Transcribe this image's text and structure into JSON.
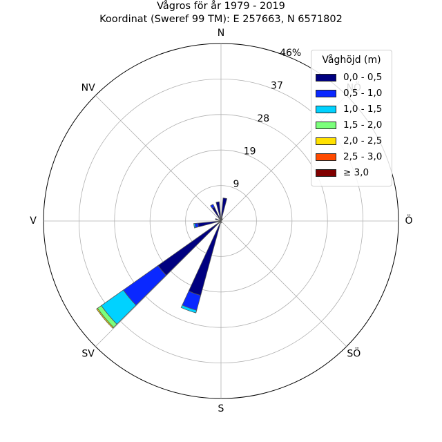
{
  "title": {
    "line1": "Vågros för år 1979 - 2019",
    "line2": "Koordinat (Sweref 99 TM): E 257663, N 6571802"
  },
  "chart_data": {
    "type": "windrose",
    "directions": [
      "N",
      "NV",
      "V",
      "SV",
      "S",
      "SÖ",
      "Ö",
      "NÖ"
    ],
    "direction_angles_deg": [
      0,
      315,
      270,
      225,
      180,
      135,
      90,
      45
    ],
    "radial_ticks": [
      "9",
      "19",
      "28",
      "37",
      "46%"
    ],
    "radial_tick_values": [
      9.2,
      18.4,
      27.6,
      36.8,
      46
    ],
    "rmax": 46,
    "grid": true,
    "legend": {
      "title": "Våghöjd (m)",
      "position": "top-right",
      "items": [
        {
          "label": "0,0 - 0,5",
          "color": "#000080"
        },
        {
          "label": "0,5 - 1,0",
          "color": "#0a28ff"
        },
        {
          "label": "1,0 - 1,5",
          "color": "#00d2ff"
        },
        {
          "label": "1,5 - 2,0",
          "color": "#7bff7b"
        },
        {
          "label": "2,0 - 2,5",
          "color": "#ffe100"
        },
        {
          "label": "2,5 - 3,0",
          "color": "#ff4a00"
        },
        {
          "label": "≥ 3,0",
          "color": "#800000"
        }
      ]
    },
    "sector_width_deg": 9.5,
    "sectors": [
      {
        "direction_deg": 10,
        "values": [
          6.0,
          0.0,
          0.0,
          0.0,
          0.0,
          0.0,
          0.0
        ]
      },
      {
        "direction_deg": 20,
        "values": [
          0.8,
          0.0,
          0.0,
          0.0,
          0.0,
          0.0,
          0.0
        ]
      },
      {
        "direction_deg": 40,
        "values": [
          0.6,
          0.0,
          0.0,
          0.0,
          0.0,
          0.0,
          0.0
        ]
      },
      {
        "direction_deg": 160,
        "values": [
          0.5,
          0.0,
          0.0,
          0.0,
          0.0,
          0.0,
          0.0
        ]
      },
      {
        "direction_deg": 200,
        "values": [
          20.0,
          4.0,
          0.7,
          0.0,
          0.0,
          0.0,
          0.0
        ]
      },
      {
        "direction_deg": 230,
        "values": [
          20.0,
          11.0,
          7.0,
          1.2,
          0.3,
          0.0,
          0.0
        ]
      },
      {
        "direction_deg": 260,
        "values": [
          6.0,
          0.8,
          0.3,
          0.0,
          0.0,
          0.0,
          0.0
        ]
      },
      {
        "direction_deg": 290,
        "values": [
          1.5,
          0.0,
          0.0,
          0.0,
          0.0,
          0.0,
          0.0
        ]
      },
      {
        "direction_deg": 330,
        "values": [
          4.0,
          0.8,
          0.0,
          0.0,
          0.0,
          0.0,
          0.0
        ]
      },
      {
        "direction_deg": 350,
        "values": [
          5.0,
          0.0,
          0.0,
          0.0,
          0.0,
          0.0,
          0.0
        ]
      }
    ]
  }
}
